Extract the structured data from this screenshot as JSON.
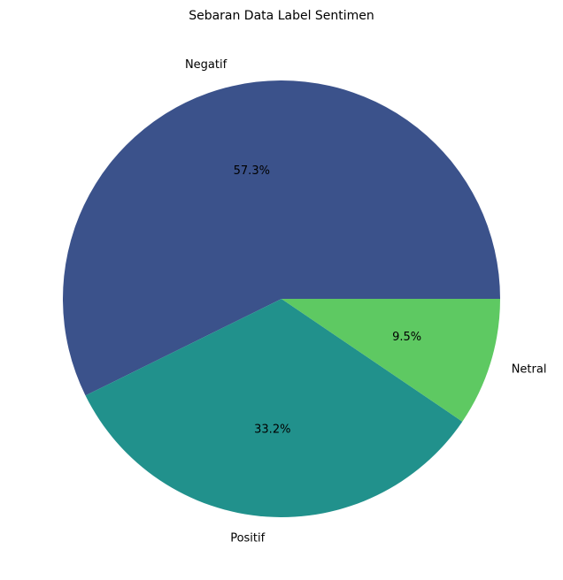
{
  "chart_data": {
    "type": "pie",
    "title": "Sebaran Data Label Sentimen",
    "slices": [
      {
        "label": "Negatif",
        "value": 57.3,
        "pct_label": "57.3%",
        "color": "#3b528b"
      },
      {
        "label": "Positif",
        "value": 33.2,
        "pct_label": "33.2%",
        "color": "#21918c"
      },
      {
        "label": "Netral",
        "value": 9.5,
        "pct_label": "9.5%",
        "color": "#5ec962"
      }
    ],
    "start_angle_deg": 0,
    "direction": "counterclockwise",
    "legend": "none"
  }
}
